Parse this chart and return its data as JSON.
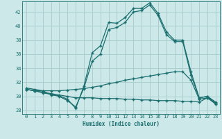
{
  "xlabel": "Humidex (Indice chaleur)",
  "bg_color": "#cce8e8",
  "line_color": "#1a6e6e",
  "grid_color": "#aacece",
  "xlim": [
    -0.5,
    23.5
  ],
  "ylim": [
    27.5,
    43.5
  ],
  "yticks": [
    28,
    30,
    32,
    34,
    36,
    38,
    40,
    42
  ],
  "xticks": [
    0,
    1,
    2,
    3,
    4,
    5,
    6,
    7,
    8,
    9,
    10,
    11,
    12,
    13,
    14,
    15,
    16,
    17,
    18,
    19,
    20,
    21,
    22,
    23
  ],
  "line1_x": [
    0,
    1,
    2,
    3,
    4,
    5,
    6,
    7,
    8,
    9,
    10,
    11,
    12,
    13,
    14,
    15,
    16,
    17,
    18,
    19,
    20,
    21,
    22,
    23
  ],
  "line1_y": [
    31.2,
    31.0,
    30.8,
    30.2,
    30.1,
    29.6,
    28.3,
    31.5,
    36.2,
    37.2,
    40.5,
    40.4,
    41.2,
    42.5,
    42.5,
    43.3,
    41.8,
    39.2,
    38.0,
    38.0,
    33.5,
    29.8,
    30.0,
    29.2
  ],
  "line2_x": [
    0,
    1,
    2,
    3,
    4,
    5,
    6,
    7,
    8,
    9,
    10,
    11,
    12,
    13,
    14,
    15,
    16,
    17,
    18,
    19,
    20,
    21,
    22,
    23
  ],
  "line2_y": [
    31.0,
    30.8,
    30.5,
    30.3,
    30.0,
    29.4,
    28.5,
    31.2,
    35.0,
    36.0,
    39.5,
    39.8,
    40.5,
    42.0,
    42.2,
    43.0,
    41.5,
    38.8,
    37.8,
    37.8,
    33.0,
    29.8,
    30.0,
    29.0
  ],
  "line3_x": [
    0,
    1,
    2,
    3,
    4,
    5,
    6,
    7,
    8,
    9,
    10,
    11,
    12,
    13,
    14,
    15,
    16,
    17,
    18,
    19,
    20,
    21,
    22,
    23
  ],
  "line3_y": [
    31.0,
    30.8,
    30.8,
    30.8,
    30.8,
    30.9,
    31.0,
    31.1,
    31.3,
    31.5,
    31.8,
    32.0,
    32.3,
    32.5,
    32.7,
    32.9,
    33.1,
    33.3,
    33.5,
    33.5,
    32.3,
    29.6,
    29.8,
    29.0
  ],
  "line4_x": [
    0,
    1,
    2,
    3,
    4,
    5,
    6,
    7,
    8,
    9,
    10,
    11,
    12,
    13,
    14,
    15,
    16,
    17,
    18,
    19,
    20,
    21,
    22,
    23
  ],
  "line4_y": [
    31.0,
    30.8,
    30.6,
    30.4,
    30.2,
    30.0,
    29.8,
    29.8,
    29.8,
    29.7,
    29.7,
    29.7,
    29.6,
    29.6,
    29.5,
    29.5,
    29.4,
    29.4,
    29.4,
    29.3,
    29.3,
    29.2,
    29.8,
    28.9
  ]
}
